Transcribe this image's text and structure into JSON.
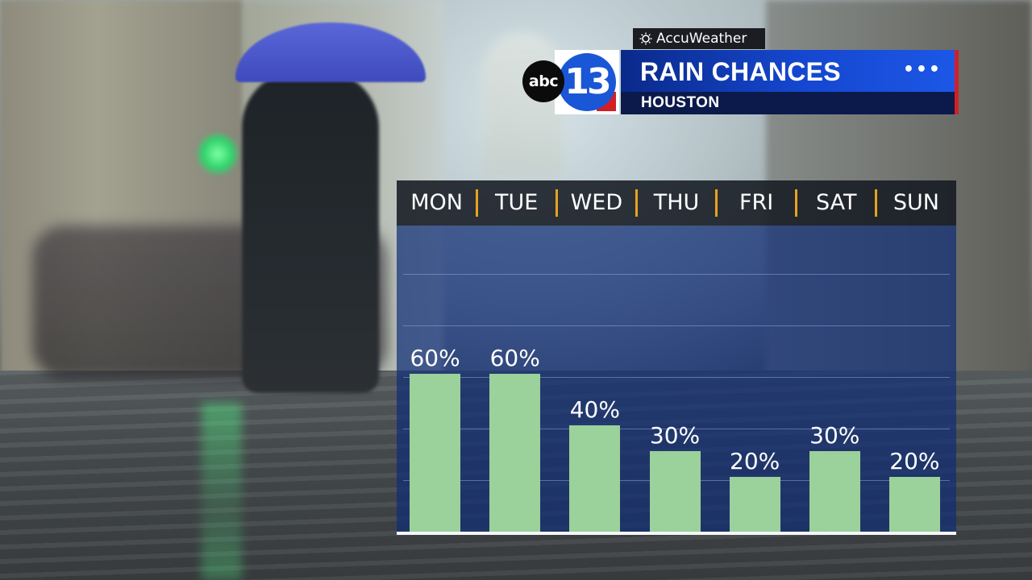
{
  "branding": {
    "provider": "AccuWeather",
    "network_logo": "abc",
    "channel_logo": "13",
    "menu_icon": "more-dots-icon"
  },
  "header": {
    "title": "RAIN CHANCES",
    "location": "HOUSTON"
  },
  "colors": {
    "bar": "#9bd19a",
    "title_blue": "#1547d0",
    "separator": "#e8a21f",
    "accent_red": "#d21f26"
  },
  "chart_data": {
    "type": "bar",
    "categories": [
      "MON",
      "TUE",
      "WED",
      "THU",
      "FRI",
      "SAT",
      "SUN"
    ],
    "values": [
      60,
      60,
      40,
      30,
      20,
      30,
      20
    ],
    "data_labels": [
      "60%",
      "60%",
      "40%",
      "30%",
      "20%",
      "30%",
      "20%"
    ],
    "title": "RAIN CHANCES",
    "subtitle": "HOUSTON",
    "xlabel": "",
    "ylabel": "",
    "ylim": [
      0,
      100
    ],
    "grid": true,
    "unit": "%"
  }
}
